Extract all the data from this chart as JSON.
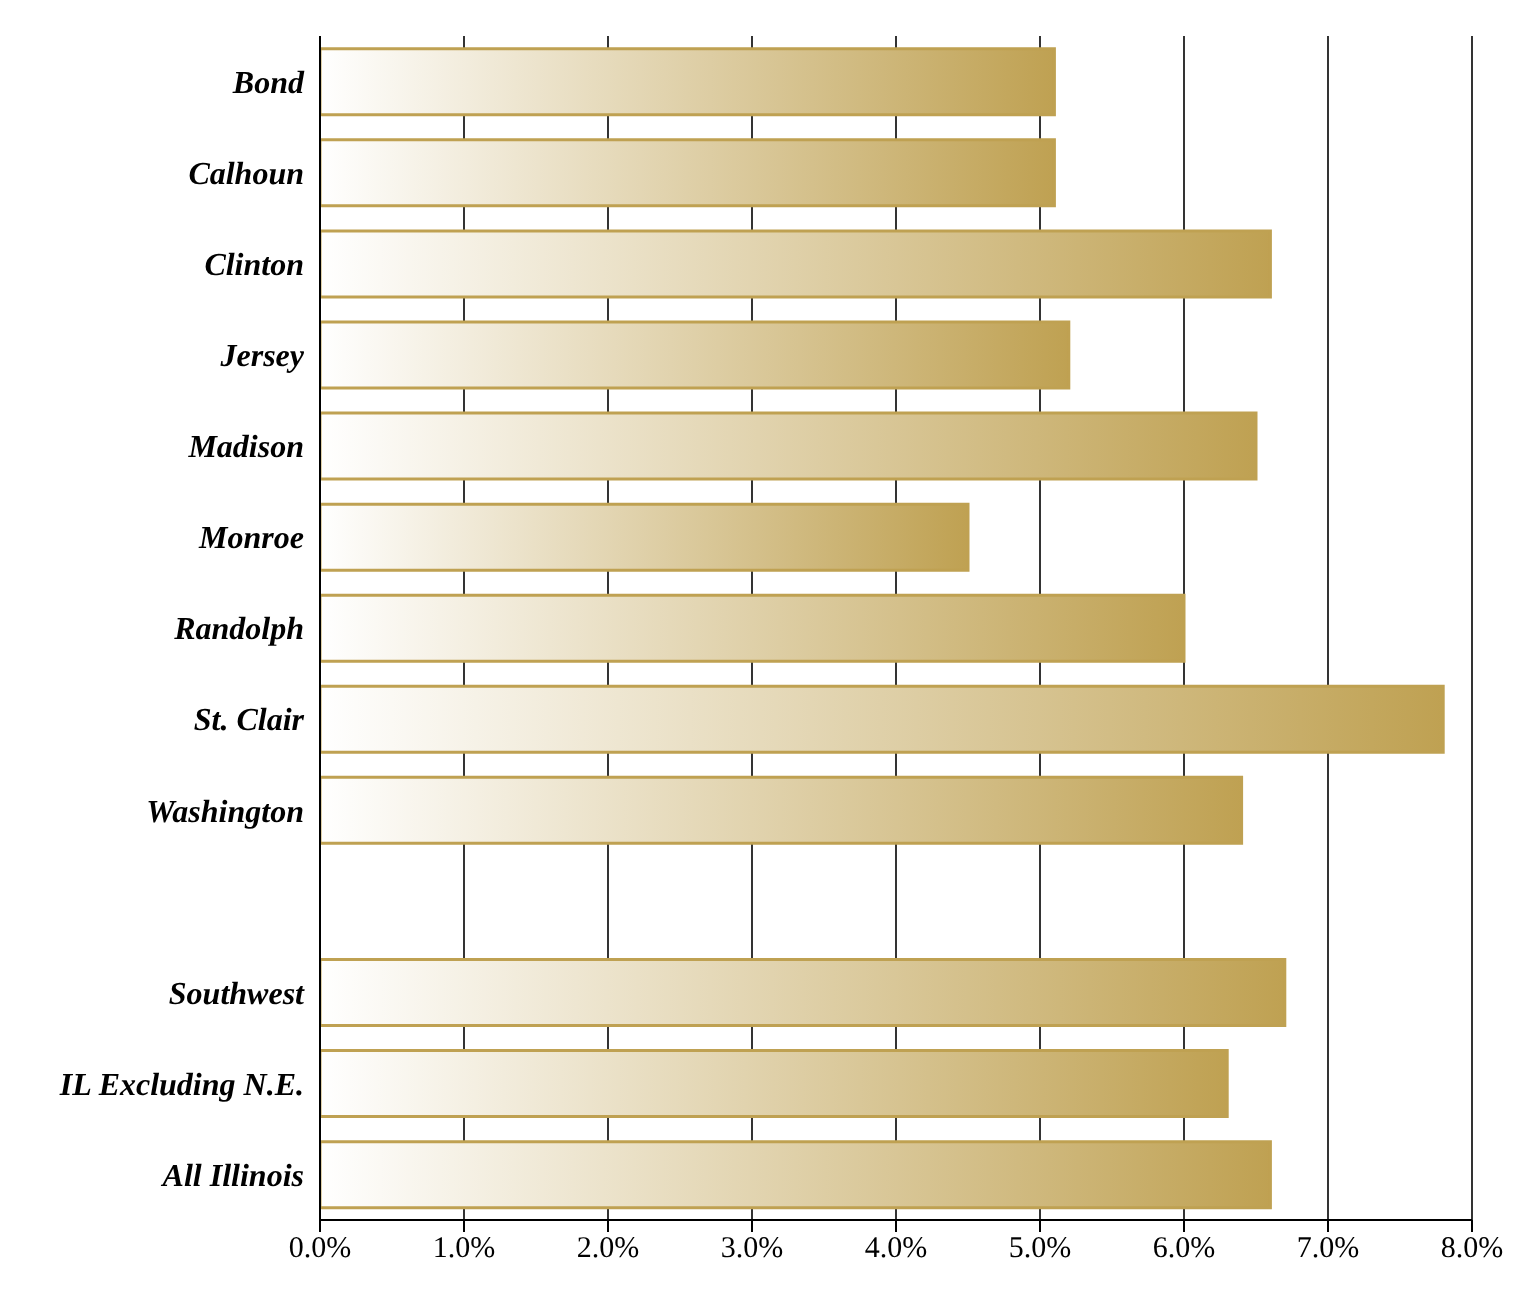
{
  "chart_data": {
    "type": "bar",
    "orientation": "horizontal",
    "categories": [
      "Bond",
      "Calhoun",
      "Clinton",
      "Jersey",
      "Madison",
      "Monroe",
      "Randolph",
      "St. Clair",
      "Washington",
      null,
      "Southwest",
      "IL Excluding N.E.",
      "All Illinois"
    ],
    "values": [
      5.1,
      5.1,
      6.6,
      5.2,
      6.5,
      4.5,
      6.0,
      7.8,
      6.4,
      null,
      6.7,
      6.3,
      6.6
    ],
    "color": "#bfa152",
    "xlim": [
      0,
      8
    ],
    "xticks": [
      {
        "value": 0,
        "label": "0.0%"
      },
      {
        "value": 1,
        "label": "1.0%"
      },
      {
        "value": 2,
        "label": "2.0%"
      },
      {
        "value": 3,
        "label": "3.0%"
      },
      {
        "value": 4,
        "label": "4.0%"
      },
      {
        "value": 5,
        "label": "5.0%"
      },
      {
        "value": 6,
        "label": "6.0%"
      },
      {
        "value": 7,
        "label": "7.0%"
      },
      {
        "value": 8,
        "label": "8.0%"
      }
    ],
    "grid": "x"
  }
}
